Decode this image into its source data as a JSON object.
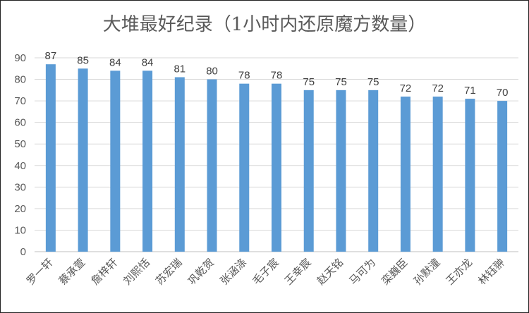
{
  "chart_data": {
    "type": "bar",
    "title": "大堆最好纪录（1小时内还原魔方数量）",
    "categories": [
      "罗一轩",
      "蔡承萱",
      "詹梓轩",
      "刘熙恬",
      "苏宏瑞",
      "巩乾贺",
      "张涵涤",
      "毛子宸",
      "王幸宸",
      "赵天铭",
      "马可为",
      "栾巍臣",
      "孙默潼",
      "王亦龙",
      "林钰翀"
    ],
    "values": [
      87,
      85,
      84,
      84,
      81,
      80,
      78,
      78,
      75,
      75,
      75,
      72,
      72,
      71,
      70
    ],
    "ylim": [
      0,
      90
    ],
    "yticks": [
      0,
      10,
      20,
      30,
      40,
      50,
      60,
      70,
      80,
      90
    ],
    "grid": true,
    "data_labels": true,
    "bar_color": "#5b9bd5",
    "grid_color": "#d9d9d9"
  }
}
